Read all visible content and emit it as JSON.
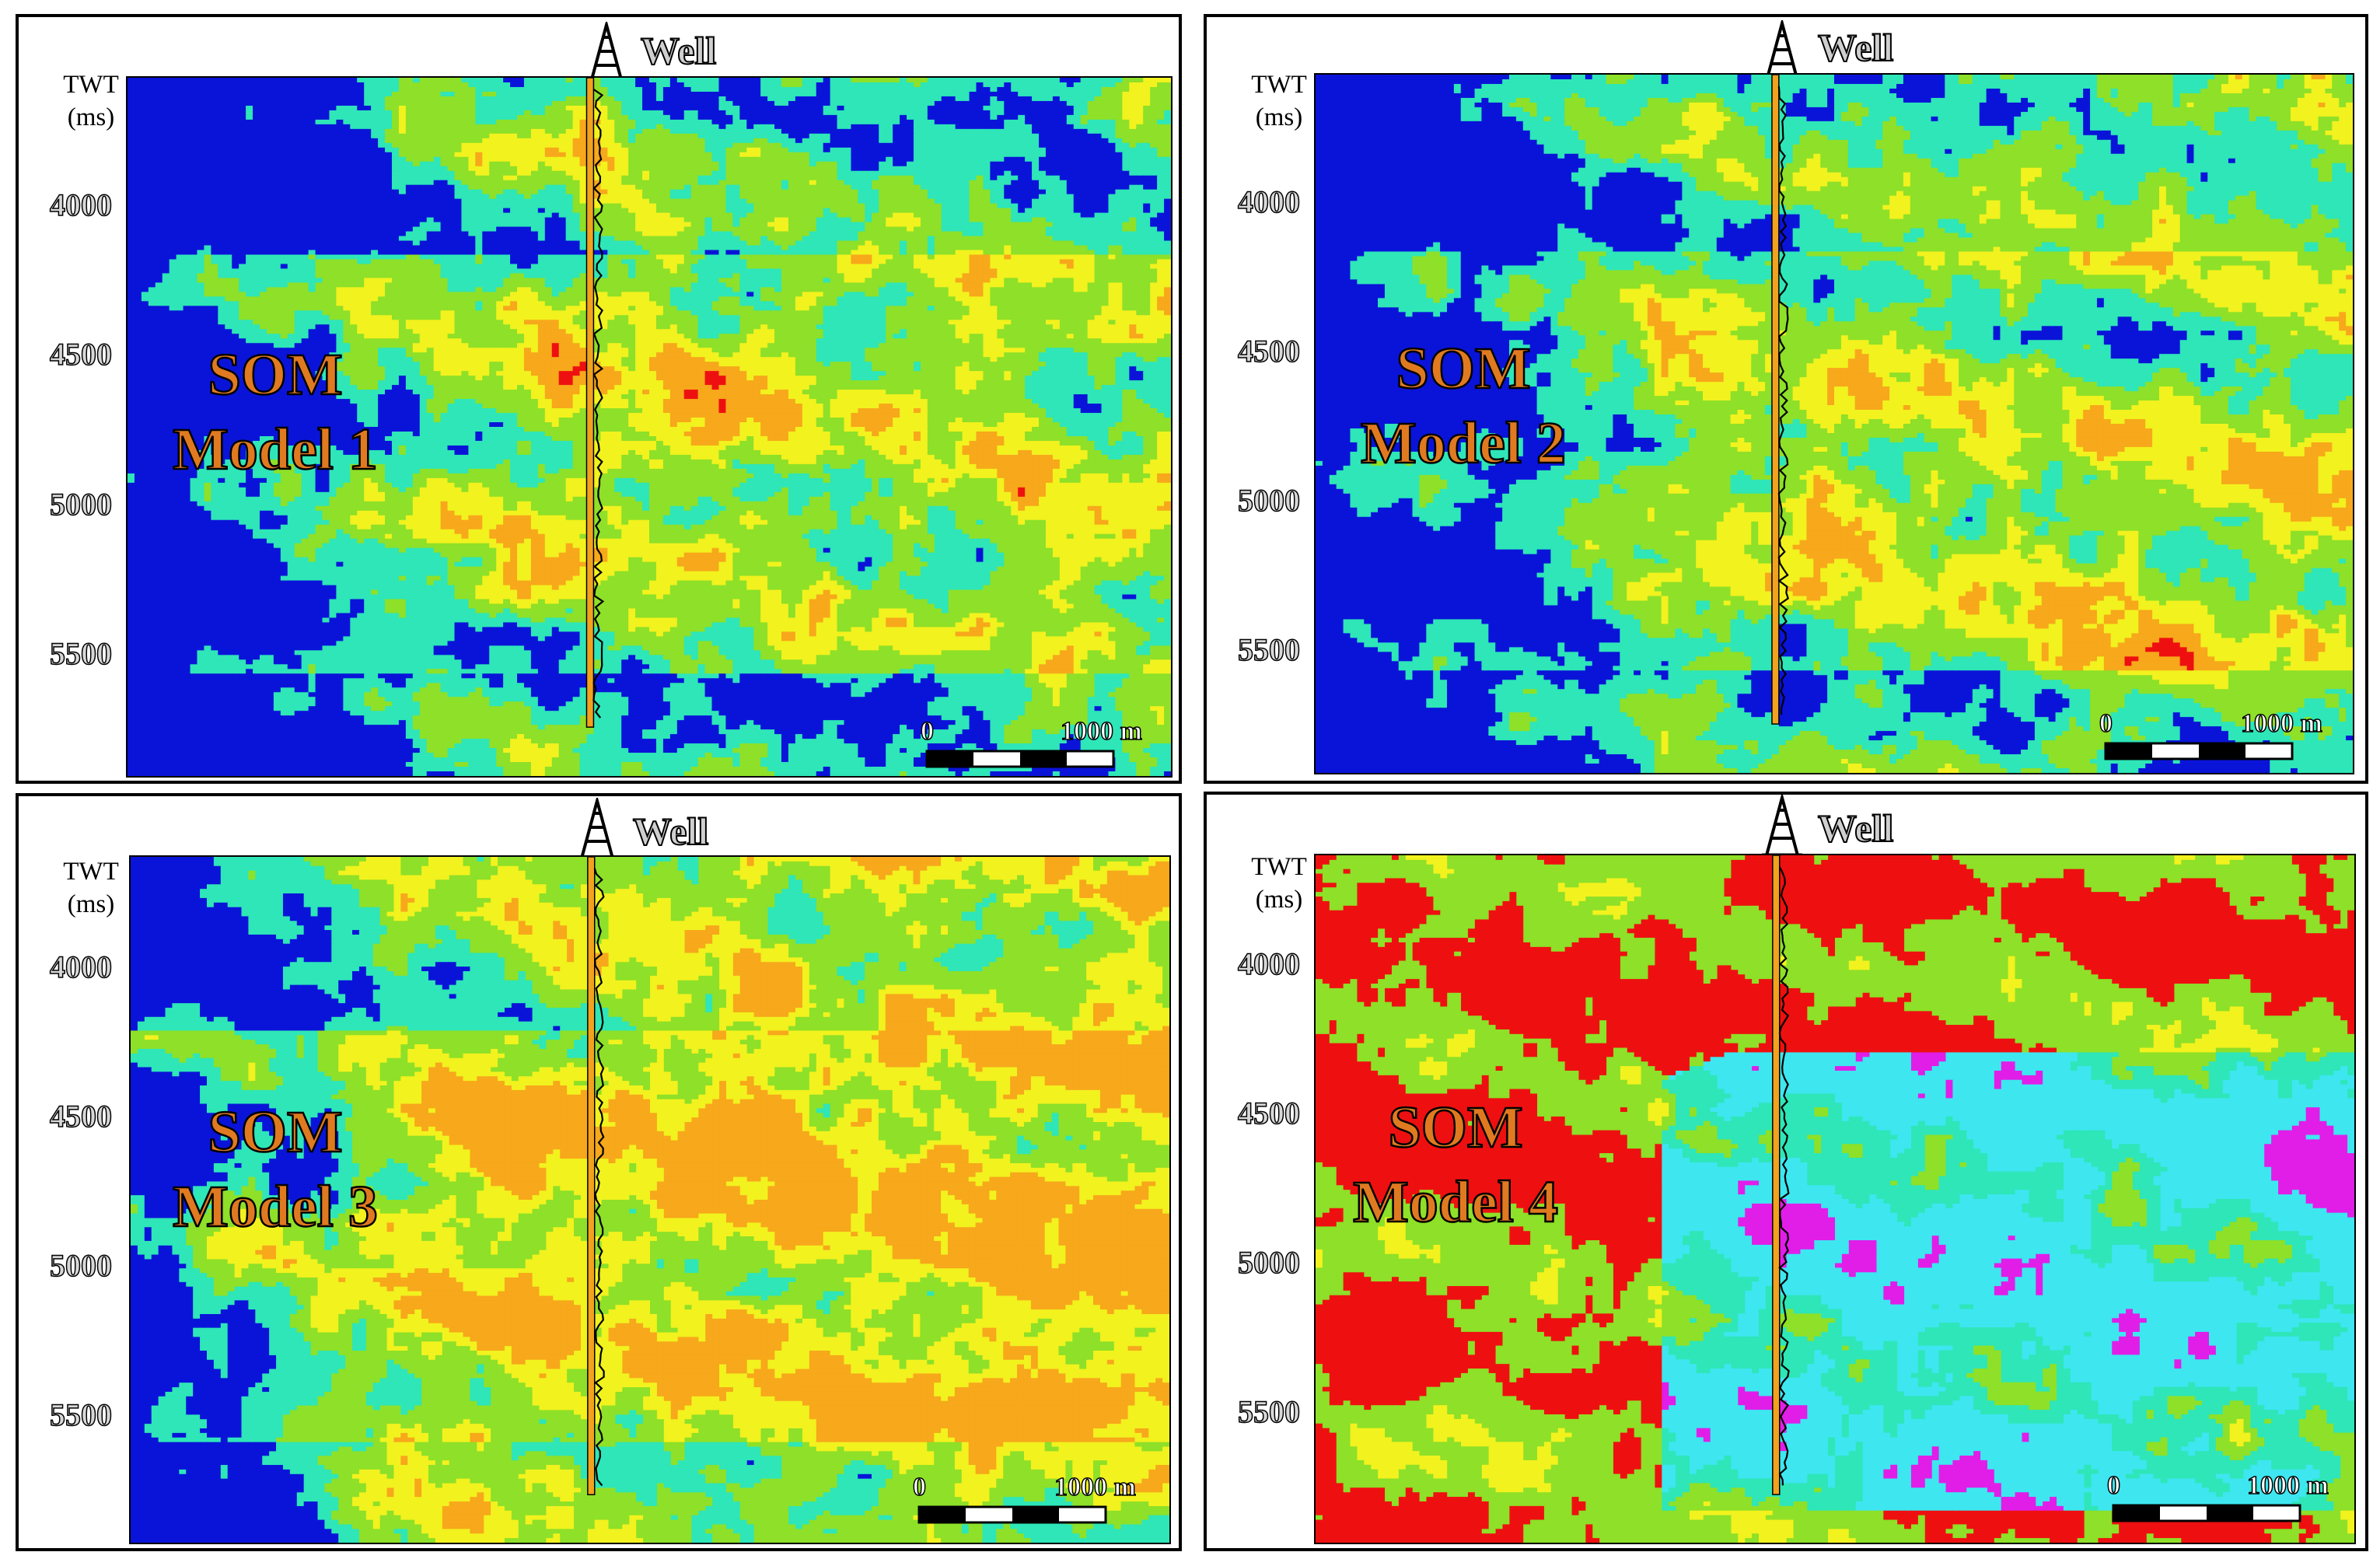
{
  "panels": [
    {
      "model_line1": "SOM",
      "model_line2": "Model  1",
      "well_label": "Well",
      "axis_title_line1": "TWT",
      "axis_title_line2": "(ms)",
      "ticks": [
        "4000",
        "4500",
        "5000",
        "5500"
      ],
      "scale_start": "0",
      "scale_end": "1000 m",
      "scheme": "model1"
    },
    {
      "model_line1": "SOM",
      "model_line2": "Model  2",
      "well_label": "Well",
      "axis_title_line1": "TWT",
      "axis_title_line2": "(ms)",
      "ticks": [
        "4000",
        "4500",
        "5000",
        "5500"
      ],
      "scale_start": "0",
      "scale_end": "1000 m",
      "scheme": "model2"
    },
    {
      "model_line1": "SOM",
      "model_line2": "Model  3",
      "well_label": "Well",
      "axis_title_line1": "TWT",
      "axis_title_line2": "(ms)",
      "ticks": [
        "4000",
        "4500",
        "5000",
        "5500"
      ],
      "scale_start": "0",
      "scale_end": "1000 m",
      "scheme": "model3"
    },
    {
      "model_line1": "SOM",
      "model_line2": "Model  4",
      "well_label": "Well",
      "axis_title_line1": "TWT",
      "axis_title_line2": "(ms)",
      "ticks": [
        "4000",
        "4500",
        "5000",
        "5500"
      ],
      "scale_start": "0",
      "scale_end": "1000 m",
      "scheme": "model4"
    }
  ],
  "colors": {
    "blue": "#0a14d8",
    "teal": "#2ee6b8",
    "green": "#8ee028",
    "yellow": "#f2f21e",
    "orange": "#f7a81b",
    "red": "#ee1010",
    "magenta": "#e01ee8",
    "cyan": "#3ee6f0",
    "well_log": "#f2a21e"
  }
}
